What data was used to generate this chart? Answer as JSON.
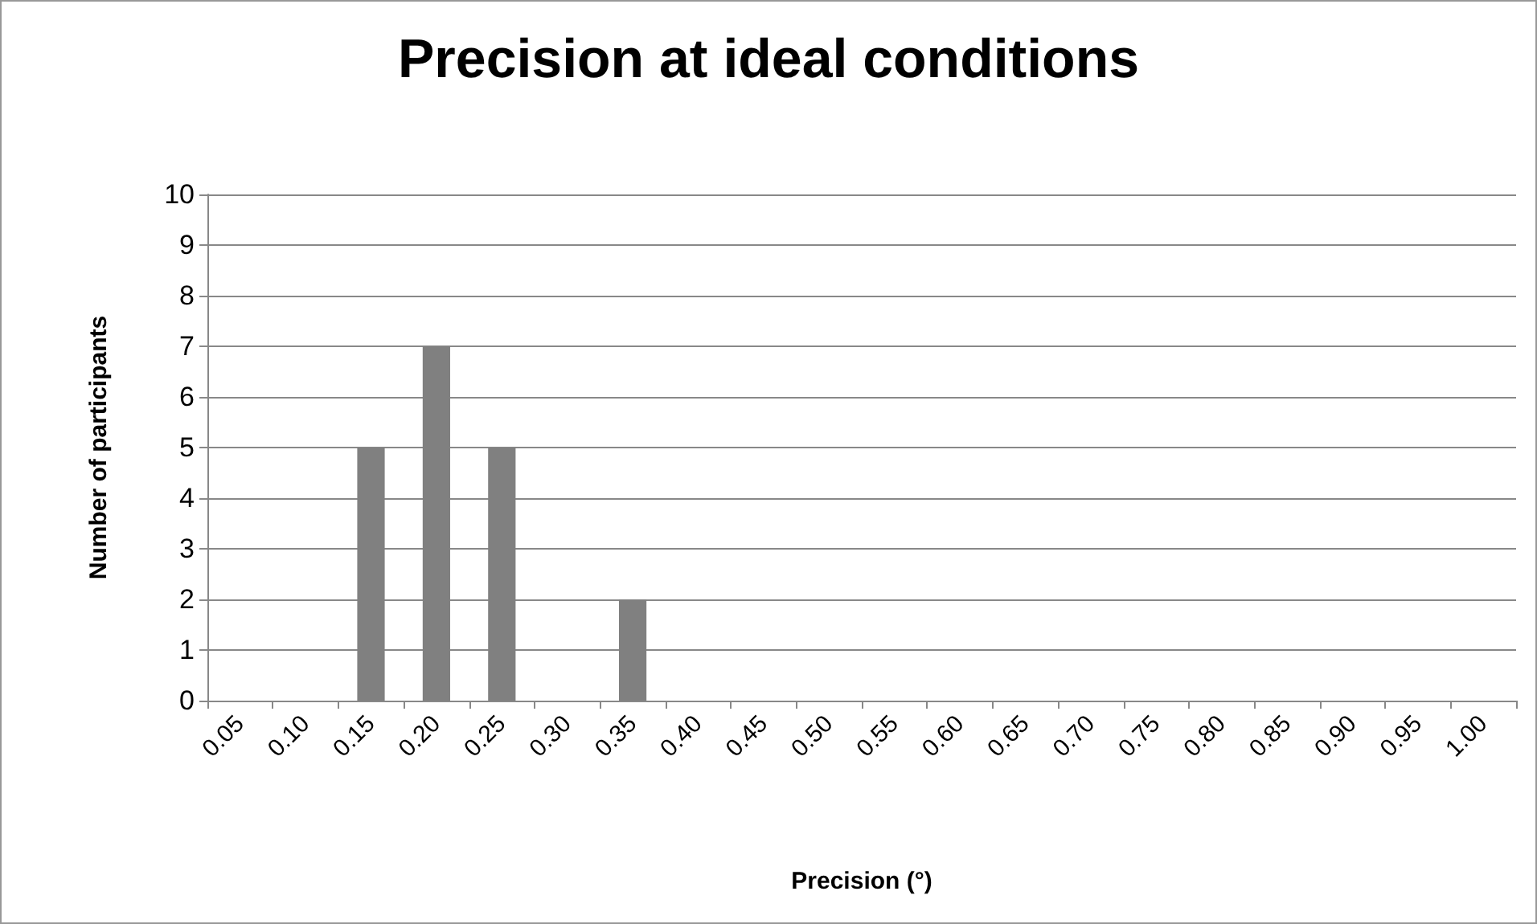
{
  "chart_data": {
    "type": "bar",
    "title": "Precision at ideal conditions",
    "xlabel": "Precision (°)",
    "ylabel": "Number of participants",
    "categories": [
      "0.05",
      "0.10",
      "0.15",
      "0.20",
      "0.25",
      "0.30",
      "0.35",
      "0.40",
      "0.45",
      "0.50",
      "0.55",
      "0.60",
      "0.65",
      "0.70",
      "0.75",
      "0.80",
      "0.85",
      "0.90",
      "0.95",
      "1.00"
    ],
    "values": [
      0,
      0,
      5,
      7,
      5,
      0,
      2,
      0,
      0,
      0,
      0,
      0,
      0,
      0,
      0,
      0,
      0,
      0,
      0,
      0
    ],
    "color": "#808080",
    "ylim": [
      0,
      10
    ],
    "yticks": [
      0,
      1,
      2,
      3,
      4,
      5,
      6,
      7,
      8,
      9,
      10
    ],
    "grid": "y"
  }
}
